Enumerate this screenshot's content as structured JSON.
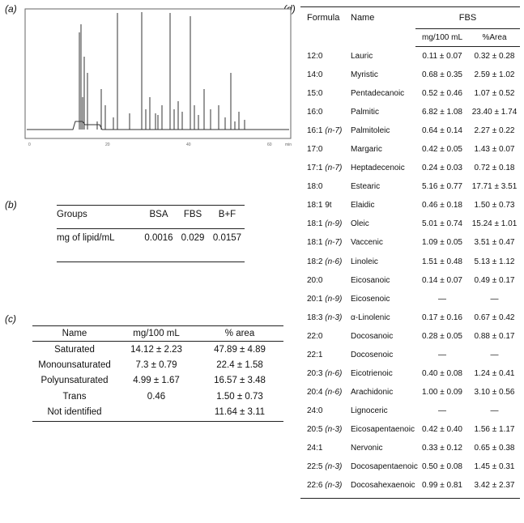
{
  "labels": {
    "a": "a",
    "b": "b",
    "c": "c",
    "d": "d"
  },
  "chrom_axis": {
    "ticks": [
      "0",
      "20",
      "40",
      "60",
      "min"
    ]
  },
  "table_b": {
    "headers": [
      "Groups",
      "BSA",
      "FBS",
      "B+F"
    ],
    "row": [
      "mg of lipid/mL",
      "0.0016",
      "0.029",
      "0.0157"
    ]
  },
  "table_c": {
    "headers": [
      "Name",
      "mg/100 mL",
      "% area"
    ],
    "rows": [
      [
        "Saturated",
        "14.12 ± 2.23",
        "47.89 ± 4.89"
      ],
      [
        "Monounsaturated",
        "7.3 ± 0.79",
        "22.4 ± 1.58"
      ],
      [
        "Polyunsaturated",
        "4.99 ± 1.67",
        "16.57 ± 3.48"
      ],
      [
        "Trans",
        "0.46",
        "1.50 ± 0.73"
      ],
      [
        "Not identified",
        "",
        "11.64 ± 3.11"
      ]
    ]
  },
  "table_d": {
    "h_formula": "Formula",
    "h_name": "Name",
    "h_fbs": "FBS",
    "h_mg": "mg/100 mL",
    "h_area": "%Area",
    "rows": [
      [
        "12:0",
        "",
        "Lauric",
        "0.11 ± 0.07",
        "0.32 ± 0.28"
      ],
      [
        "14:0",
        "",
        "Myristic",
        "0.68 ± 0.35",
        "2.59 ± 1.02"
      ],
      [
        "15:0",
        "",
        "Pentadecanoic",
        "0.52 ± 0.46",
        "1.07 ± 0.52"
      ],
      [
        "16:0",
        "",
        "Palmitic",
        "6.82 ± 1.08",
        "23.40 ± 1.74"
      ],
      [
        "16:1 ",
        "(n-7)",
        "Palmitoleic",
        "0.64 ± 0.14",
        "2.27 ± 0.22"
      ],
      [
        "17:0",
        "",
        "Margaric",
        "0.42 ± 0.05",
        "1.43 ± 0.07"
      ],
      [
        "17:1 ",
        "(n-7)",
        "Heptadecenoic",
        "0.24 ± 0.03",
        "0.72 ± 0.18"
      ],
      [
        "18:0",
        "",
        "Estearic",
        "5.16 ± 0.77",
        "17.71 ± 3.51"
      ],
      [
        "18:1 9t",
        "",
        "Elaidic",
        "0.46 ± 0.18",
        "1.50 ± 0.73"
      ],
      [
        "18:1 ",
        "(n-9)",
        "Oleic",
        "5.01 ± 0.74",
        "15.24 ± 1.01"
      ],
      [
        "18:1 ",
        "(n-7)",
        "Vaccenic",
        "1.09 ± 0.05",
        "3.51 ± 0.47"
      ],
      [
        "18:2 ",
        "(n-6)",
        "Linoleic",
        "1.51 ± 0.48",
        "5.13 ± 1.12"
      ],
      [
        "20:0",
        "",
        "Eicosanoic",
        "0.14 ± 0.07",
        "0.49 ± 0.17"
      ],
      [
        "20:1 ",
        "(n-9)",
        "Eicosenoic",
        "—",
        "—"
      ],
      [
        "18:3 ",
        "(n-3)",
        "α-Linolenic",
        "0.17 ± 0.16",
        "0.67 ± 0.42"
      ],
      [
        "22:0",
        "",
        "Docosanoic",
        "0.28 ± 0.05",
        "0.88 ± 0.17"
      ],
      [
        "22:1",
        "",
        "Docosenoic",
        "—",
        "—"
      ],
      [
        "20:3 ",
        "(n-6)",
        "Eicotrienoic",
        "0.40 ± 0.08",
        "1.24 ± 0.41"
      ],
      [
        "20:4 ",
        "(n-6)",
        "Arachidonic",
        "1.00 ± 0.09",
        "3.10 ± 0.56"
      ],
      [
        "24:0",
        "",
        "Lignoceric",
        "—",
        "—"
      ],
      [
        "20:5 ",
        "(n-3)",
        "Eicosapentaenoic",
        "0.42 ± 0.40",
        "1.56 ± 1.17"
      ],
      [
        "24:1",
        "",
        "Nervonic",
        "0.33 ± 0.12",
        "0.65 ± 0.38"
      ],
      [
        "22:5 ",
        "(n-3)",
        "Docosapentaenoic",
        "0.50 ± 0.08",
        "1.45 ± 0.31"
      ],
      [
        "22:6 ",
        "(n-3)",
        "Docosahexaenoic",
        "0.99 ± 0.81",
        "3.42 ± 2.37"
      ]
    ]
  }
}
